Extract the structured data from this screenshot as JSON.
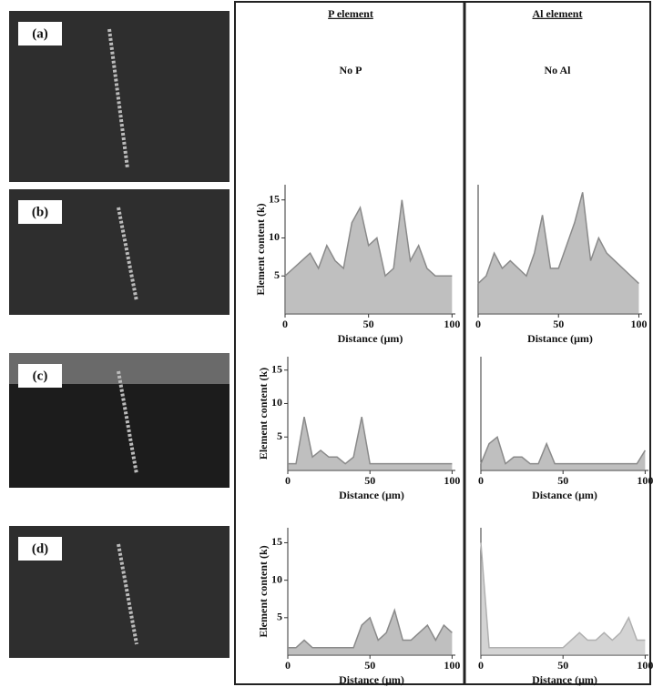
{
  "panels": [
    "(a)",
    "(b)",
    "(c)",
    "(d)"
  ],
  "columns": [
    "P element",
    "Al element"
  ],
  "notes": [
    "No P",
    "No Al"
  ],
  "chart_data": [
    {
      "type": "line",
      "color": "#8a8a8a",
      "ylabel": "Element content (k)",
      "xlabel": "Distance (μm)",
      "x": [
        0,
        5,
        10,
        15,
        20,
        25,
        30,
        35,
        40,
        45,
        50,
        55,
        60,
        65,
        70,
        75,
        80,
        85,
        90,
        95,
        100
      ],
      "values": [
        5,
        6,
        7,
        8,
        6,
        9,
        7,
        6,
        12,
        14,
        9,
        10,
        5,
        6,
        15,
        7,
        9,
        6,
        5,
        5,
        5
      ],
      "xlim": [
        0,
        102
      ],
      "ylim": [
        0,
        17
      ],
      "xticks": [
        0,
        50,
        100
      ],
      "yticks": [
        5,
        10,
        15
      ]
    },
    {
      "type": "line",
      "color": "#8a8a8a",
      "xlabel": "Distance (μm)",
      "x": [
        0,
        5,
        10,
        15,
        20,
        25,
        30,
        35,
        40,
        45,
        50,
        55,
        60,
        65,
        70,
        75,
        80,
        85,
        90,
        95,
        100
      ],
      "values": [
        4,
        5,
        8,
        6,
        7,
        6,
        5,
        8,
        13,
        6,
        6,
        9,
        12,
        16,
        7,
        10,
        8,
        7,
        6,
        5,
        4
      ],
      "xlim": [
        0,
        102
      ],
      "ylim": [
        0,
        17
      ],
      "xticks": [
        0,
        50,
        100
      ]
    },
    {
      "type": "line",
      "color": "#8a8a8a",
      "ylabel": "Element content (k)",
      "xlabel": "Distance (μm)",
      "x": [
        0,
        5,
        10,
        15,
        20,
        25,
        30,
        35,
        40,
        45,
        50,
        55,
        60,
        65,
        70,
        75,
        80,
        85,
        90,
        95,
        100
      ],
      "values": [
        1,
        1,
        8,
        2,
        3,
        2,
        2,
        1,
        2,
        8,
        1,
        1,
        1,
        1,
        1,
        1,
        1,
        1,
        1,
        1,
        1
      ],
      "xlim": [
        0,
        102
      ],
      "ylim": [
        0,
        17
      ],
      "xticks": [
        0,
        50,
        100
      ],
      "yticks": [
        5,
        10,
        15
      ]
    },
    {
      "type": "line",
      "color": "#8a8a8a",
      "xlabel": "Distance (μm)",
      "x": [
        0,
        5,
        10,
        15,
        20,
        25,
        30,
        35,
        40,
        45,
        50,
        55,
        60,
        65,
        70,
        75,
        80,
        85,
        90,
        95,
        100
      ],
      "values": [
        1,
        4,
        5,
        1,
        2,
        2,
        1,
        1,
        4,
        1,
        1,
        1,
        1,
        1,
        1,
        1,
        1,
        1,
        1,
        1,
        3
      ],
      "xlim": [
        0,
        102
      ],
      "ylim": [
        0,
        17
      ],
      "xticks": [
        0,
        50,
        100
      ]
    },
    {
      "type": "line",
      "color": "#8a8a8a",
      "ylabel": "Element content (k)",
      "xlabel": "Distance (μm)",
      "x": [
        0,
        5,
        10,
        15,
        20,
        25,
        30,
        35,
        40,
        45,
        50,
        55,
        60,
        65,
        70,
        75,
        80,
        85,
        90,
        95,
        100
      ],
      "values": [
        1,
        1,
        2,
        1,
        1,
        1,
        1,
        1,
        1,
        4,
        5,
        2,
        3,
        6,
        2,
        2,
        3,
        4,
        2,
        4,
        3
      ],
      "xlim": [
        0,
        102
      ],
      "ylim": [
        0,
        17
      ],
      "xticks": [
        0,
        50,
        100
      ],
      "yticks": [
        5,
        10,
        15
      ]
    },
    {
      "type": "line",
      "color": "#b0b0b0",
      "xlabel": "Distance (μm)",
      "x": [
        0,
        5,
        10,
        15,
        20,
        25,
        30,
        35,
        40,
        45,
        50,
        55,
        60,
        65,
        70,
        75,
        80,
        85,
        90,
        95,
        100
      ],
      "values": [
        15,
        1,
        1,
        1,
        1,
        1,
        1,
        1,
        1,
        1,
        1,
        2,
        3,
        2,
        2,
        3,
        2,
        3,
        5,
        2,
        2
      ],
      "xlim": [
        0,
        102
      ],
      "ylim": [
        0,
        17
      ],
      "xticks": [
        0,
        50,
        100
      ]
    }
  ]
}
